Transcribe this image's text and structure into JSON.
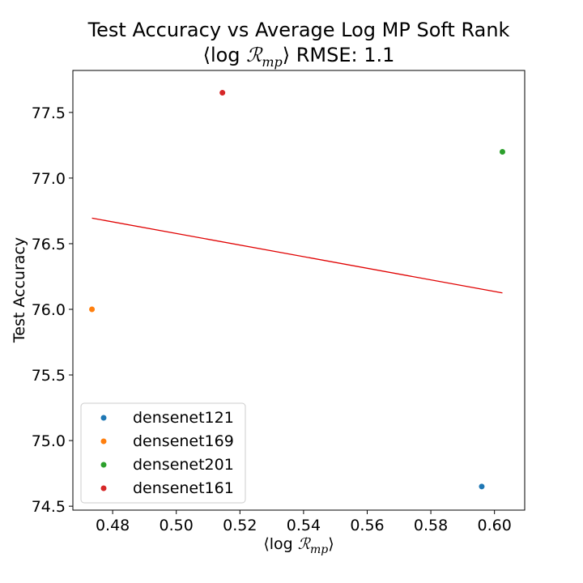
{
  "chart_data": {
    "type": "scatter",
    "title_line1": "Test Accuracy vs Average Log MP Soft Rank",
    "title_line2_prefix": "⟨log ",
    "title_line2_symbol": "ℛ",
    "title_line2_subscript": "mp",
    "title_line2_suffix": "⟩ RMSE: 1.1",
    "xlabel_prefix": "⟨log ",
    "xlabel_symbol": "ℛ",
    "xlabel_subscript": "mp",
    "xlabel_suffix": "⟩",
    "ylabel": "Test Accuracy",
    "xlim": [
      0.4675,
      0.6095
    ],
    "ylim": [
      74.47,
      77.82
    ],
    "xticks": [
      0.48,
      0.5,
      0.52,
      0.54,
      0.56,
      0.58,
      0.6
    ],
    "xtick_labels": [
      "0.48",
      "0.50",
      "0.52",
      "0.54",
      "0.56",
      "0.58",
      "0.60"
    ],
    "yticks": [
      74.5,
      75.0,
      75.5,
      76.0,
      76.5,
      77.0,
      77.5
    ],
    "ytick_labels": [
      "74.5",
      "75.0",
      "75.5",
      "76.0",
      "76.5",
      "77.0",
      "77.5"
    ],
    "grid": false,
    "legend_position": "lower-left",
    "series": [
      {
        "name": "densenet121",
        "color": "#1f77b4",
        "x": 0.596,
        "y": 74.65
      },
      {
        "name": "densenet169",
        "color": "#ff7f0e",
        "x": 0.4735,
        "y": 76.0
      },
      {
        "name": "densenet201",
        "color": "#2ca02c",
        "x": 0.6025,
        "y": 77.2
      },
      {
        "name": "densenet161",
        "color": "#d62728",
        "x": 0.5145,
        "y": 77.65
      }
    ],
    "fit_line": {
      "color": "#e00000",
      "x": [
        0.4735,
        0.6025
      ],
      "y": [
        76.695,
        76.125
      ]
    }
  }
}
